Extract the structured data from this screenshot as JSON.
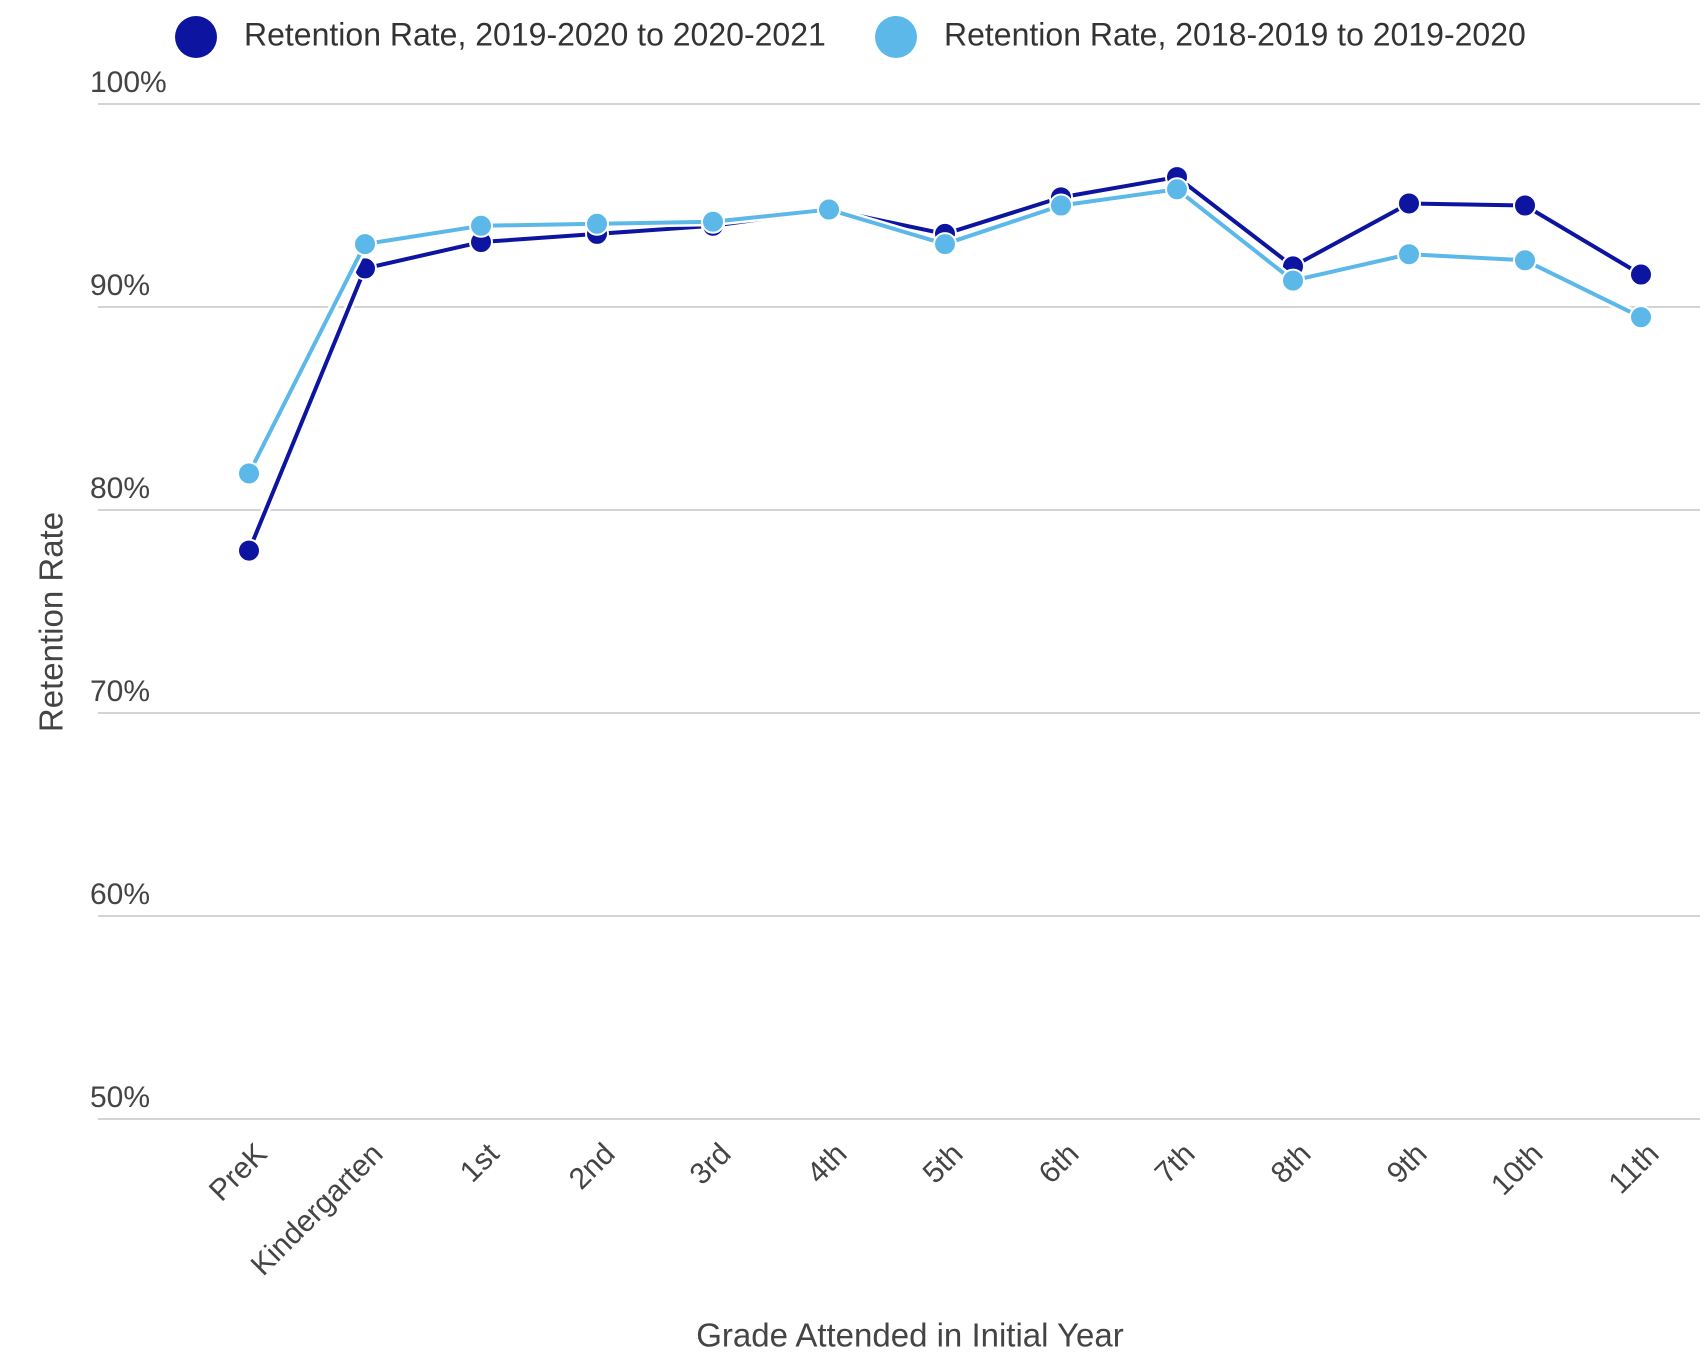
{
  "chart_data": {
    "type": "line",
    "x_label": "Grade Attended in Initial Year",
    "y_label": "Retention Rate",
    "categories": [
      "PreK",
      "Kindergarten",
      "1st",
      "2nd",
      "3rd",
      "4th",
      "5th",
      "6th",
      "7th",
      "8th",
      "9th",
      "10th",
      "11th"
    ],
    "series": [
      {
        "name": "Retention Rate, 2019-2020 to 2020-2021",
        "color": "#0d14a0",
        "values": [
          78.0,
          91.9,
          93.2,
          93.6,
          94.0,
          94.8,
          93.6,
          95.4,
          96.4,
          92.0,
          95.1,
          95.0,
          91.6
        ]
      },
      {
        "name": "Retention Rate, 2018-2019 to 2019-2020",
        "color": "#5cb8e8",
        "values": [
          81.8,
          93.1,
          94.0,
          94.1,
          94.2,
          94.8,
          93.1,
          95.0,
          95.8,
          91.3,
          92.6,
          92.3,
          89.5
        ]
      }
    ],
    "ylim": [
      50,
      100
    ],
    "yticks": [
      {
        "value": 50,
        "label": "50%"
      },
      {
        "value": 60,
        "label": "60%"
      },
      {
        "value": 70,
        "label": "70%"
      },
      {
        "value": 80,
        "label": "80%"
      },
      {
        "value": 90,
        "label": "90%"
      },
      {
        "value": 100,
        "label": "100%"
      }
    ],
    "grid": true,
    "legend": "top"
  }
}
